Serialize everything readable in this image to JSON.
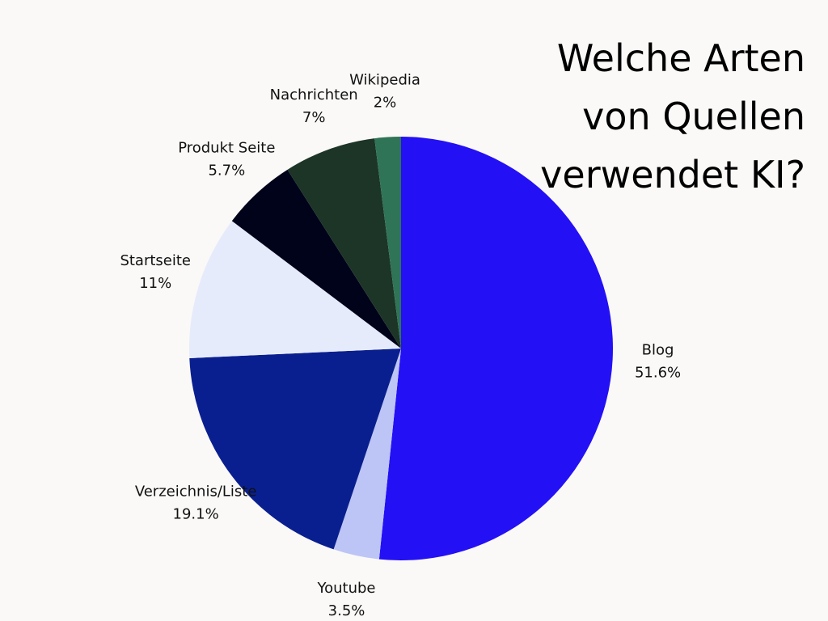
{
  "chart_data": {
    "type": "pie",
    "title": "Welche Arten von Quellen verwendet KI?",
    "categories": [
      "Blog",
      "Youtube",
      "Verzeichnis/Liste",
      "Startseite",
      "Produkt Seite",
      "Nachrichten",
      "Wikipedia"
    ],
    "values": [
      51.6,
      3.5,
      19.1,
      11,
      5.7,
      7,
      2
    ],
    "value_labels": [
      "51.6%",
      "3.5%",
      "19.1%",
      "11%",
      "5.7%",
      "7%",
      "2%"
    ],
    "colors": [
      "#2410f5",
      "#bcc5f5",
      "#0a1f8f",
      "#e6ebfb",
      "#00031a",
      "#1c3526",
      "#2f7456"
    ]
  }
}
